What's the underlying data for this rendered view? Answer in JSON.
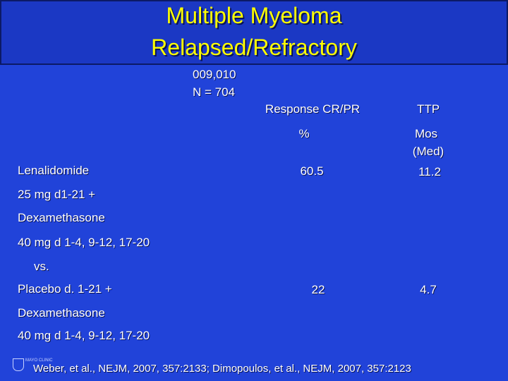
{
  "header": {
    "title": [
      "Multiple Myeloma",
      "Relapsed/Refractory"
    ]
  },
  "study": {
    "trials": "009,010",
    "n": "N = 704"
  },
  "table": {
    "columns": [
      "Response CR/PR",
      "TTP"
    ],
    "units": [
      "%",
      [
        "Mos",
        "(Med)"
      ]
    ],
    "regimen_lines": [
      "Lenalidomide",
      "25 mg d1-21 +",
      "Dexamethasone",
      "40 mg d 1-4, 9-12, 17-20",
      "vs.",
      "Placebo d. 1-21 +",
      "Dexamethasone",
      "40 mg d 1-4, 9-12, 17-20"
    ],
    "rows": [
      [
        60.5,
        11.2
      ],
      [
        22,
        4.7
      ]
    ]
  },
  "footer": {
    "logo": "MAYO CLINIC",
    "citation": "Weber, et al., NEJM, 2007, 357:2133; Dimopoulos, et al., NEJM, 2007, 357:2123"
  }
}
